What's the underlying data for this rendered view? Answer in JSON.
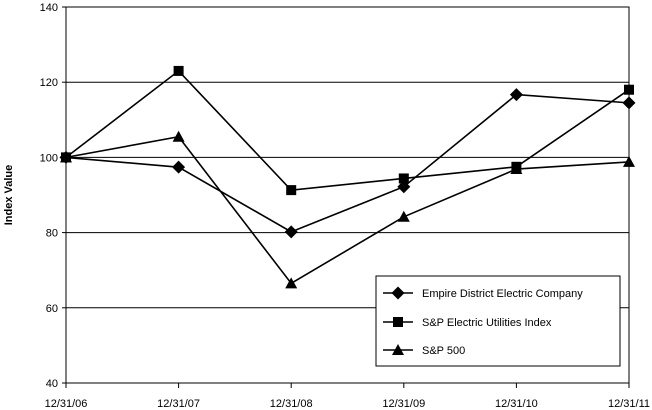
{
  "chart_data": {
    "type": "line",
    "title": "",
    "xlabel": "",
    "ylabel": "Index Value",
    "categories": [
      "12/31/06",
      "12/31/07",
      "12/31/08",
      "12/31/09",
      "12/31/10",
      "12/31/11"
    ],
    "ylim": [
      40,
      140
    ],
    "yticks": [
      40,
      60,
      80,
      100,
      120,
      140
    ],
    "grid": "horizontal",
    "legend_position": "bottom-right",
    "series": [
      {
        "name": "Empire District Electric Company",
        "marker": "diamond",
        "values": [
          100,
          97.4,
          80.2,
          92.2,
          116.7,
          114.5
        ]
      },
      {
        "name": "S&P Electric Utilities Index",
        "marker": "square",
        "values": [
          100,
          123,
          91.3,
          94.4,
          97.5,
          118
        ]
      },
      {
        "name": "S&P 500",
        "marker": "triangle",
        "values": [
          100,
          105.5,
          66.5,
          84.2,
          96.9,
          98.8
        ]
      }
    ],
    "colors": {
      "line": "#000000",
      "grid": "#000000",
      "background": "#ffffff"
    }
  }
}
